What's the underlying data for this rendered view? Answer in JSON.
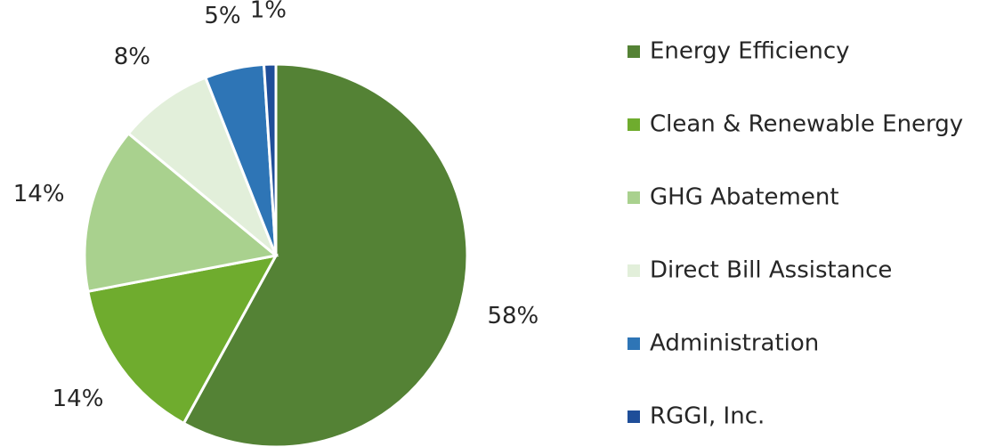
{
  "chart_data": {
    "type": "pie",
    "categories": [
      "Energy Efficiency",
      "Clean & Renewable Energy",
      "GHG Abatement",
      "Direct Bill Assistance",
      "Administration",
      "RGGI, Inc."
    ],
    "values": [
      58,
      14,
      14,
      8,
      5,
      1
    ],
    "value_labels": [
      "58%",
      "14%",
      "14%",
      "8%",
      "5%",
      "1%"
    ],
    "colors": [
      "#548235",
      "#6fac2e",
      "#a9d18e",
      "#e2efda",
      "#2e75b6",
      "#1f4e99"
    ],
    "legend": "right"
  }
}
